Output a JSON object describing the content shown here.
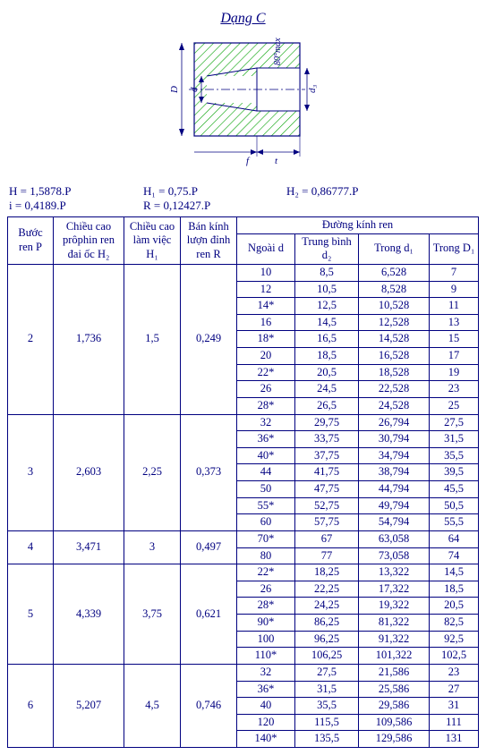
{
  "title": "Dạng C",
  "diagram": {
    "hatch_color": "#00a000",
    "line_color": "#000080",
    "labels": {
      "d": "d",
      "D": "D",
      "d3": "d₃",
      "taper": "80°max",
      "f": "f",
      "t": "t"
    }
  },
  "formulas": {
    "H": "H = 1,5878.P",
    "i": "i = 0,4189.P",
    "H1": "H₁ = 0,75.P",
    "R": "R = 0,12427.P",
    "H2": "H₂ = 0,86777.P"
  },
  "table": {
    "headers": {
      "P": "Bước ren P",
      "H2col": "Chiều cao prôphin ren đai ốc H₂",
      "H1col": "Chiều cao làm việc H₁",
      "Rcol": "Bán kính lượn đỉnh ren R",
      "diam_group": "Đường kính ren",
      "d": "Ngoài d",
      "d2": "Trung bình d₂",
      "d1": "Trong d₁",
      "D1": "Trong D₁"
    },
    "groups": [
      {
        "P": "2",
        "H2": "1,736",
        "H1": "1,5",
        "R": "0,249",
        "rows": [
          [
            "10",
            "8,5",
            "6,528",
            "7"
          ],
          [
            "12",
            "10,5",
            "8,528",
            "9"
          ],
          [
            "14*",
            "12,5",
            "10,528",
            "11"
          ],
          [
            "16",
            "14,5",
            "12,528",
            "13"
          ],
          [
            "18*",
            "16,5",
            "14,528",
            "15"
          ],
          [
            "20",
            "18,5",
            "16,528",
            "17"
          ],
          [
            "22*",
            "20,5",
            "18,528",
            "19"
          ],
          [
            "26",
            "24,5",
            "22,528",
            "23"
          ],
          [
            "28*",
            "26,5",
            "24,528",
            "25"
          ]
        ]
      },
      {
        "P": "3",
        "H2": "2,603",
        "H1": "2,25",
        "R": "0,373",
        "rows": [
          [
            "32",
            "29,75",
            "26,794",
            "27,5"
          ],
          [
            "36*",
            "33,75",
            "30,794",
            "31,5"
          ],
          [
            "40*",
            "37,75",
            "34,794",
            "35,5"
          ],
          [
            "44",
            "41,75",
            "38,794",
            "39,5"
          ],
          [
            "50",
            "47,75",
            "44,794",
            "45,5"
          ],
          [
            "55*",
            "52,75",
            "49,794",
            "50,5"
          ],
          [
            "60",
            "57,75",
            "54,794",
            "55,5"
          ]
        ]
      },
      {
        "P": "4",
        "H2": "3,471",
        "H1": "3",
        "R": "0,497",
        "rows": [
          [
            "70*",
            "67",
            "63,058",
            "64"
          ],
          [
            "80",
            "77",
            "73,058",
            "74"
          ]
        ]
      },
      {
        "P": "5",
        "H2": "4,339",
        "H1": "3,75",
        "R": "0,621",
        "rows": [
          [
            "22*",
            "18,25",
            "13,322",
            "14,5"
          ],
          [
            "26",
            "22,25",
            "17,322",
            "18,5"
          ],
          [
            "28*",
            "24,25",
            "19,322",
            "20,5"
          ],
          [
            "90*",
            "86,25",
            "81,322",
            "82,5"
          ],
          [
            "100",
            "96,25",
            "91,322",
            "92,5"
          ],
          [
            "110*",
            "106,25",
            "101,322",
            "102,5"
          ]
        ]
      },
      {
        "P": "6",
        "H2": "5,207",
        "H1": "4,5",
        "R": "0,746",
        "rows": [
          [
            "32",
            "27,5",
            "21,586",
            "23"
          ],
          [
            "36*",
            "31,5",
            "25,586",
            "27"
          ],
          [
            "40",
            "35,5",
            "29,586",
            "31"
          ],
          [
            "120",
            "115,5",
            "109,586",
            "111"
          ],
          [
            "140*",
            "135,5",
            "129,586",
            "131"
          ]
        ]
      }
    ]
  }
}
